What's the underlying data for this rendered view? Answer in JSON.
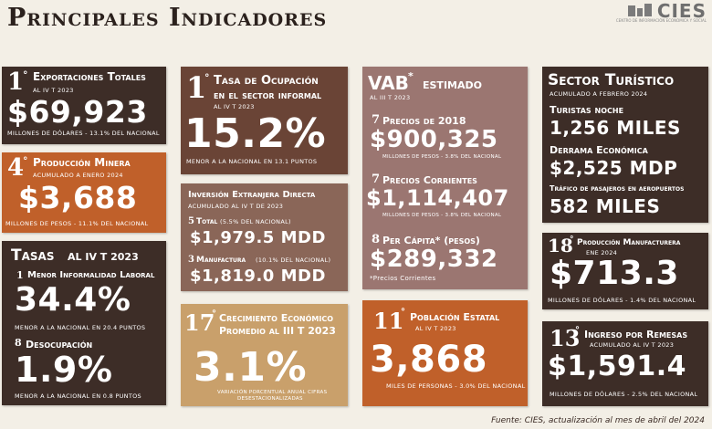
{
  "header": {
    "title": "Principales Indicadores",
    "logo_text": "CIES",
    "logo_sub": "CENTRO DE INFORMACIÓN ECONÓMICA Y SOCIAL"
  },
  "export": {
    "rank": "1",
    "rank_sup": "°",
    "label": "Exportaciones Totales",
    "period": "AL IV T 2023",
    "value": "$69,923",
    "note": "MILLONES DE DÓLARES - 13.1% DEL NACIONAL"
  },
  "mining": {
    "rank": "4",
    "rank_sup": "°",
    "label": "Producción Minera",
    "period": "ACUMULADO A ENERO 2024",
    "value": "$3,688",
    "note": "MILLONES DE PESOS - 11.1% DEL NACIONAL"
  },
  "rates": {
    "title": "Tasas",
    "period": "AL IV T 2023",
    "inf_rank": "1",
    "inf_label": "Menor Informalidad Laboral",
    "inf_value": "34.4%",
    "inf_note": "MENOR A LA NACIONAL EN 20.4 PUNTOS",
    "unemp_rank": "8",
    "unemp_label": "Desocupación",
    "unemp_value": "1.9%",
    "unemp_note": "MENOR A LA NACIONAL EN 0.8 PUNTOS"
  },
  "informal": {
    "rank": "1",
    "rank_sup": "°",
    "label1": "Tasa de Ocupación",
    "label2": "en el sector informal",
    "period": "AL IV T 2023",
    "value": "15.2%",
    "note": "MENOR A LA NACIONAL EN 13.1 PUNTOS"
  },
  "fdi": {
    "title": "Inversión Extranjera Directa",
    "period": "ACUMULADO AL IV T DE 2023",
    "total_rank": "5",
    "total_label": "Total",
    "total_note": "(5.5% DEL NACIONAL)",
    "total_value": "$1,979.5 MDD",
    "manu_rank": "3",
    "manu_label": "Manufactura",
    "manu_note": "(10.1% DEL NACIONAL)",
    "manu_value": "$1,819.0 MDD"
  },
  "growth": {
    "rank": "17",
    "rank_sup": "°",
    "label1": "Crecimiento Económico",
    "label2": "Promedio al III T 2023",
    "value": "3.1%",
    "note1": "VARIACIÓN PORCENTUAL ANUAL CIFRAS",
    "note2": "DESESTACIONALIZADAS"
  },
  "vab": {
    "title": "VAB",
    "title_sup": "*",
    "title2": "estimado",
    "period": "AL III T 2023",
    "p2018_rank": "7",
    "p2018_label": "Precios de 2018",
    "p2018_value": "$900,325",
    "p2018_note": "MILLONES DE PESOS - 3.8% DEL NACIONAL",
    "pcur_rank": "7",
    "pcur_label": "Precios Corrientes",
    "pcur_value": "$1,114,407",
    "pcur_note": "MILLONES DE PESOS - 3.8% DEL NACIONAL",
    "pc_rank": "8",
    "pc_label": "Per Cápita* (pesos)",
    "pc_value": "$289,332",
    "pc_footnote": "*Precios Corrientes"
  },
  "population": {
    "rank": "11",
    "rank_sup": "°",
    "label": "Población Estatal",
    "period": "AL IV T 2023",
    "value": "3,868",
    "note": "MILES DE PERSONAS - 3.0% DEL NACIONAL"
  },
  "tourism": {
    "title": "Sector Turístico",
    "period": "ACUMULADO A FEBRERO 2024",
    "nights_label": "Turistas noche",
    "nights_value": "1,256 MILES",
    "spend_label": "Derrama Económica",
    "spend_value": "$2,525 MDP",
    "air_label": "Tráfico de pasajeros en aeropuertos",
    "air_value": "582 MILES"
  },
  "manufacturing": {
    "rank": "18",
    "rank_sup": "°",
    "label": "Producción Manufacturera",
    "period": "ENE 2024",
    "value": "$713.3",
    "note": "MILLONES DE DÓLARES - 1.4% DEL NACIONAL"
  },
  "remittances": {
    "rank": "13",
    "rank_sup": "°",
    "label": "Ingreso por Remesas",
    "period": "ACUMULADO AL IV T 2023",
    "value": "$1,591.4",
    "note": "MILLONES DE DÓLARES - 2.5% DEL NACIONAL"
  },
  "footer": {
    "source": "Fuente: CIES, actualización al mes de abril del 2024"
  }
}
